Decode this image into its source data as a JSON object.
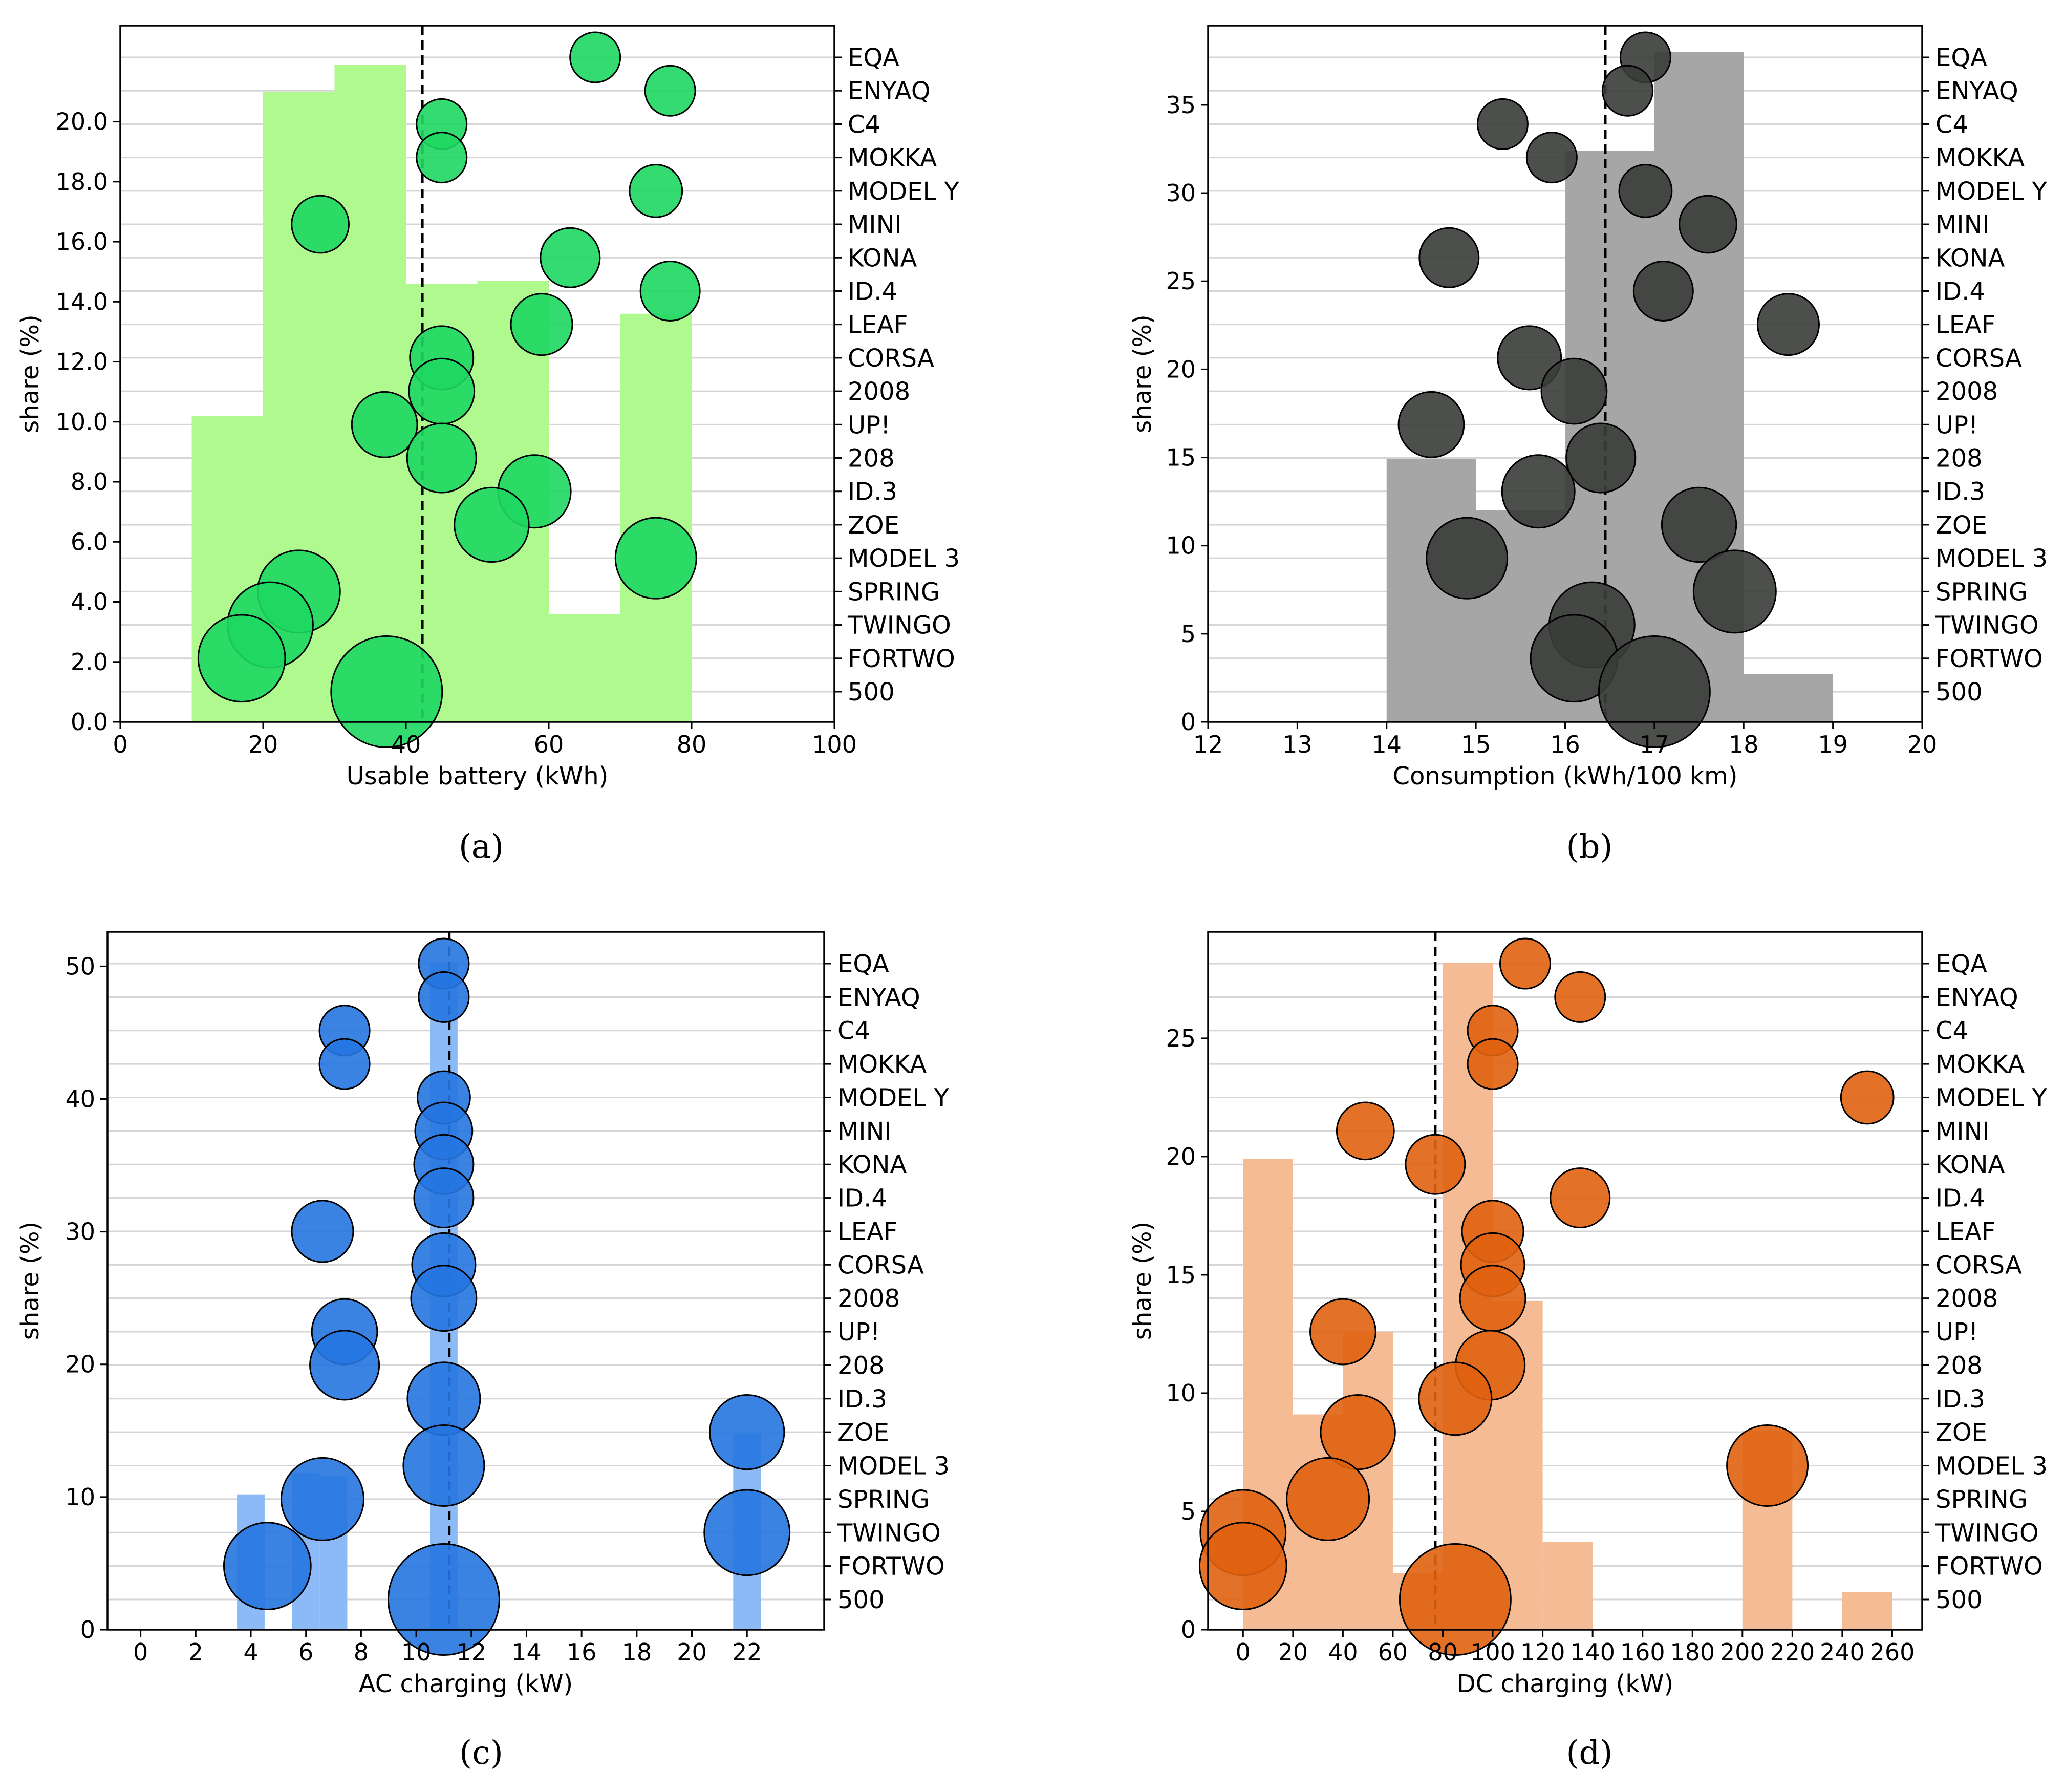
{
  "shared": {
    "ylabel": "share (%)",
    "models": [
      "EQA",
      "ENYAQ",
      "C4",
      "MOKKA",
      "MODEL Y",
      "MINI",
      "KONA",
      "ID.4",
      "LEAF",
      "CORSA",
      "2008",
      "UP!",
      "208",
      "ID.3",
      "ZOE",
      "MODEL 3",
      "SPRING",
      "TWINGO",
      "FORTWO",
      "500"
    ]
  },
  "chart_data": [
    {
      "type": "bar",
      "panel": "a",
      "caption": "(a)",
      "xlabel": "Usable battery (kWh)",
      "ylabel": "share (%)",
      "xlim": [
        0,
        100
      ],
      "ylim": [
        0,
        23.2
      ],
      "xticks": [
        0,
        20,
        40,
        60,
        80,
        100
      ],
      "xtick_labels": [
        "0",
        "20",
        "40",
        "60",
        "80",
        "100"
      ],
      "yticks": [
        0,
        2,
        4,
        6,
        8,
        10,
        12,
        14,
        16,
        18,
        20
      ],
      "ytick_labels": [
        "0.0",
        "2.0",
        "4.0",
        "6.0",
        "8.0",
        "10.0",
        "12.0",
        "14.0",
        "16.0",
        "18.0",
        "20.0"
      ],
      "bars": [
        {
          "x0": 10,
          "x1": 20,
          "value": 10.2
        },
        {
          "x0": 20,
          "x1": 30,
          "value": 21.0
        },
        {
          "x0": 30,
          "x1": 40,
          "value": 21.9
        },
        {
          "x0": 40,
          "x1": 50,
          "value": 14.6
        },
        {
          "x0": 50,
          "x1": 60,
          "value": 14.7
        },
        {
          "x0": 60,
          "x1": 70,
          "value": 3.6
        },
        {
          "x0": 70,
          "x1": 80,
          "value": 13.6
        }
      ],
      "bar_color": "#b0f98f",
      "mean_line": 42.3,
      "points": [
        {
          "model": "EQA",
          "x": 66.5,
          "size": 1
        },
        {
          "model": "ENYAQ",
          "x": 77,
          "size": 1
        },
        {
          "model": "C4",
          "x": 45,
          "size": 1
        },
        {
          "model": "MOKKA",
          "x": 45,
          "size": 1
        },
        {
          "model": "MODEL Y",
          "x": 75,
          "size": 1.1
        },
        {
          "model": "MINI",
          "x": 28,
          "size": 1.3
        },
        {
          "model": "KONA",
          "x": 63,
          "size": 1.4
        },
        {
          "model": "ID.4",
          "x": 77,
          "size": 1.4
        },
        {
          "model": "LEAF",
          "x": 59,
          "size": 1.5
        },
        {
          "model": "CORSA",
          "x": 45,
          "size": 1.6
        },
        {
          "model": "2008",
          "x": 45,
          "size": 1.7
        },
        {
          "model": "UP!",
          "x": 37,
          "size": 1.7
        },
        {
          "model": "208",
          "x": 45,
          "size": 1.9
        },
        {
          "model": "ID.3",
          "x": 58,
          "size": 2.1
        },
        {
          "model": "ZOE",
          "x": 52,
          "size": 2.2
        },
        {
          "model": "MODEL 3",
          "x": 75,
          "size": 2.6
        },
        {
          "model": "SPRING",
          "x": 25,
          "size": 2.7
        },
        {
          "model": "TWINGO",
          "x": 21,
          "size": 2.9
        },
        {
          "model": "FORTWO",
          "x": 17,
          "size": 3.0
        },
        {
          "model": "500",
          "x": 37.3,
          "size": 4.9
        }
      ],
      "point_color": "#1ed760"
    },
    {
      "type": "bar",
      "panel": "b",
      "caption": "(b)",
      "xlabel": "Consumption (kWh/100 km)",
      "ylabel": "share (%)",
      "xlim": [
        12,
        20
      ],
      "ylim": [
        0,
        39.5
      ],
      "xticks": [
        12,
        13,
        14,
        15,
        16,
        17,
        18,
        19,
        20
      ],
      "xtick_labels": [
        "12",
        "13",
        "14",
        "15",
        "16",
        "17",
        "18",
        "19",
        "20"
      ],
      "yticks": [
        0,
        5,
        10,
        15,
        20,
        25,
        30,
        35
      ],
      "ytick_labels": [
        "0",
        "5",
        "10",
        "15",
        "20",
        "25",
        "30",
        "35"
      ],
      "bars": [
        {
          "x0": 14,
          "x1": 15,
          "value": 14.9
        },
        {
          "x0": 15,
          "x1": 16,
          "value": 12.0
        },
        {
          "x0": 16,
          "x1": 17,
          "value": 32.4
        },
        {
          "x0": 17,
          "x1": 18,
          "value": 38.0
        },
        {
          "x0": 18,
          "x1": 19,
          "value": 2.7
        }
      ],
      "bar_color": "#a6a6a6",
      "mean_line": 16.45,
      "points": [
        {
          "model": "EQA",
          "x": 16.9,
          "size": 1
        },
        {
          "model": "ENYAQ",
          "x": 16.7,
          "size": 1
        },
        {
          "model": "C4",
          "x": 15.3,
          "size": 1
        },
        {
          "model": "MOKKA",
          "x": 15.85,
          "size": 1
        },
        {
          "model": "MODEL Y",
          "x": 16.9,
          "size": 1.1
        },
        {
          "model": "MINI",
          "x": 17.6,
          "size": 1.3
        },
        {
          "model": "KONA",
          "x": 14.7,
          "size": 1.4
        },
        {
          "model": "ID.4",
          "x": 17.1,
          "size": 1.4
        },
        {
          "model": "LEAF",
          "x": 18.5,
          "size": 1.5
        },
        {
          "model": "CORSA",
          "x": 15.6,
          "size": 1.6
        },
        {
          "model": "2008",
          "x": 16.1,
          "size": 1.7
        },
        {
          "model": "UP!",
          "x": 14.5,
          "size": 1.7
        },
        {
          "model": "208",
          "x": 16.4,
          "size": 1.9
        },
        {
          "model": "ID.3",
          "x": 15.7,
          "size": 2.1
        },
        {
          "model": "ZOE",
          "x": 17.5,
          "size": 2.2
        },
        {
          "model": "MODEL 3",
          "x": 14.9,
          "size": 2.6
        },
        {
          "model": "SPRING",
          "x": 17.9,
          "size": 2.7
        },
        {
          "model": "TWINGO",
          "x": 16.3,
          "size": 2.9
        },
        {
          "model": "FORTWO",
          "x": 16.1,
          "size": 3.0
        },
        {
          "model": "500",
          "x": 17.0,
          "size": 4.9
        }
      ],
      "point_color": "#3a3c38"
    },
    {
      "type": "bar",
      "panel": "c",
      "caption": "(c)",
      "xlabel": "AC charging (kW)",
      "ylabel": "share (%)",
      "xlim": [
        -1.2,
        24.8
      ],
      "ylim": [
        0,
        52.6
      ],
      "xticks": [
        0,
        2,
        4,
        6,
        8,
        10,
        12,
        14,
        16,
        18,
        20,
        22
      ],
      "xtick_labels": [
        "0",
        "2",
        "4",
        "6",
        "8",
        "10",
        "12",
        "14",
        "16",
        "18",
        "20",
        "22"
      ],
      "yticks": [
        0,
        10,
        20,
        30,
        40,
        50
      ],
      "ytick_labels": [
        "0",
        "10",
        "20",
        "30",
        "40",
        "50"
      ],
      "bars": [
        {
          "x0": 3.5,
          "x1": 4.5,
          "value": 10.2
        },
        {
          "x0": 5.5,
          "x1": 6.5,
          "value": 11.8
        },
        {
          "x0": 6.5,
          "x1": 7.5,
          "value": 11.6
        },
        {
          "x0": 10.5,
          "x1": 11.5,
          "value": 50.3
        },
        {
          "x0": 21.5,
          "x1": 22.5,
          "value": 14.8
        }
      ],
      "bar_color": "#8bbaf7",
      "mean_line": 11.2,
      "points": [
        {
          "model": "EQA",
          "x": 11,
          "size": 1
        },
        {
          "model": "ENYAQ",
          "x": 11,
          "size": 1
        },
        {
          "model": "C4",
          "x": 7.4,
          "size": 1
        },
        {
          "model": "MOKKA",
          "x": 7.4,
          "size": 1
        },
        {
          "model": "MODEL Y",
          "x": 11,
          "size": 1.1
        },
        {
          "model": "MINI",
          "x": 11,
          "size": 1.3
        },
        {
          "model": "KONA",
          "x": 11,
          "size": 1.4
        },
        {
          "model": "ID.4",
          "x": 11,
          "size": 1.4
        },
        {
          "model": "LEAF",
          "x": 6.6,
          "size": 1.5
        },
        {
          "model": "CORSA",
          "x": 11,
          "size": 1.6
        },
        {
          "model": "2008",
          "x": 11,
          "size": 1.7
        },
        {
          "model": "UP!",
          "x": 7.4,
          "size": 1.7
        },
        {
          "model": "208",
          "x": 7.4,
          "size": 1.9
        },
        {
          "model": "ID.3",
          "x": 11,
          "size": 2.1
        },
        {
          "model": "ZOE",
          "x": 22,
          "size": 2.2
        },
        {
          "model": "MODEL 3",
          "x": 11,
          "size": 2.6
        },
        {
          "model": "SPRING",
          "x": 6.6,
          "size": 2.7
        },
        {
          "model": "TWINGO",
          "x": 22,
          "size": 2.9
        },
        {
          "model": "FORTWO",
          "x": 4.6,
          "size": 3.0
        },
        {
          "model": "500",
          "x": 11,
          "size": 4.9
        }
      ],
      "point_color": "#2575e0"
    },
    {
      "type": "bar",
      "panel": "d",
      "caption": "(d)",
      "xlabel": "DC charging (kW)",
      "ylabel": "share (%)",
      "xlim": [
        -14,
        272
      ],
      "ylim": [
        0,
        29.5
      ],
      "xticks": [
        0,
        20,
        40,
        60,
        80,
        100,
        120,
        140,
        160,
        180,
        200,
        220,
        240,
        260
      ],
      "xtick_labels": [
        "0",
        "20",
        "40",
        "60",
        "80",
        "100",
        "120",
        "140",
        "160",
        "180",
        "200",
        "220",
        "240",
        "260"
      ],
      "yticks": [
        0,
        5,
        10,
        15,
        20,
        25
      ],
      "ytick_labels": [
        "0",
        "5",
        "10",
        "15",
        "20",
        "25"
      ],
      "bars": [
        {
          "x0": 0,
          "x1": 20,
          "value": 19.9
        },
        {
          "x0": 20,
          "x1": 40,
          "value": 9.1
        },
        {
          "x0": 40,
          "x1": 60,
          "value": 12.6
        },
        {
          "x0": 60,
          "x1": 80,
          "value": 2.4
        },
        {
          "x0": 80,
          "x1": 100,
          "value": 28.2
        },
        {
          "x0": 100,
          "x1": 120,
          "value": 13.9
        },
        {
          "x0": 120,
          "x1": 140,
          "value": 3.7
        },
        {
          "x0": 200,
          "x1": 220,
          "value": 8.4
        },
        {
          "x0": 240,
          "x1": 260,
          "value": 1.6
        }
      ],
      "bar_color": "#f5bb94",
      "mean_line": 77,
      "points": [
        {
          "model": "EQA",
          "x": 113,
          "size": 1
        },
        {
          "model": "ENYAQ",
          "x": 135,
          "size": 1
        },
        {
          "model": "C4",
          "x": 100,
          "size": 1
        },
        {
          "model": "MOKKA",
          "x": 100,
          "size": 1
        },
        {
          "model": "MODEL Y",
          "x": 250,
          "size": 1.1
        },
        {
          "model": "MINI",
          "x": 49,
          "size": 1.3
        },
        {
          "model": "KONA",
          "x": 77,
          "size": 1.4
        },
        {
          "model": "ID.4",
          "x": 135,
          "size": 1.4
        },
        {
          "model": "LEAF",
          "x": 100,
          "size": 1.5
        },
        {
          "model": "CORSA",
          "x": 100,
          "size": 1.6
        },
        {
          "model": "2008",
          "x": 100,
          "size": 1.7
        },
        {
          "model": "UP!",
          "x": 40,
          "size": 1.7
        },
        {
          "model": "208",
          "x": 99,
          "size": 1.9
        },
        {
          "model": "ID.3",
          "x": 85,
          "size": 2.1
        },
        {
          "model": "ZOE",
          "x": 46,
          "size": 2.2
        },
        {
          "model": "MODEL 3",
          "x": 210,
          "size": 2.6
        },
        {
          "model": "SPRING",
          "x": 34,
          "size": 2.7
        },
        {
          "model": "TWINGO",
          "x": 0,
          "size": 2.9
        },
        {
          "model": "FORTWO",
          "x": 0,
          "size": 3.0
        },
        {
          "model": "500",
          "x": 85,
          "size": 4.9
        }
      ],
      "point_color": "#e0620f"
    }
  ]
}
